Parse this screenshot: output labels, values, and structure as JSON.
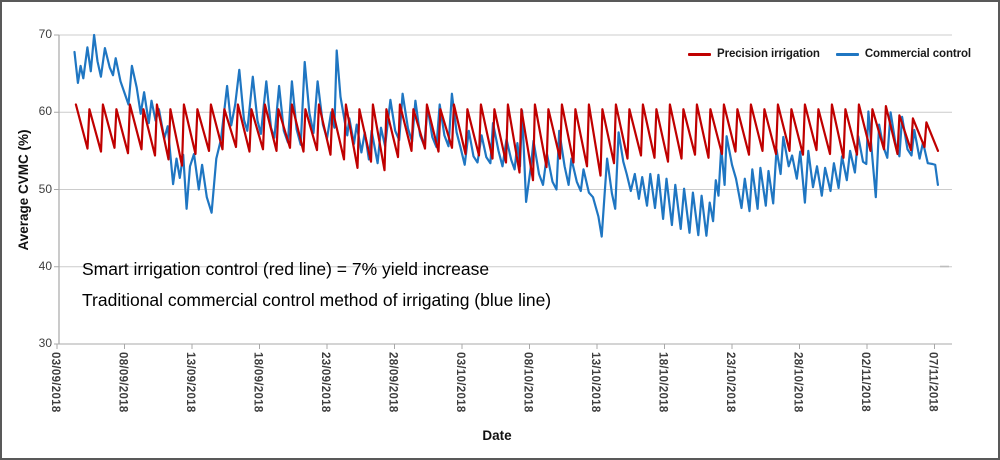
{
  "annotation": {
    "line1": "Smart irrigation control (red line) = 7% yield increase",
    "line2": "Traditional commercial control method of irrigating (blue line)"
  },
  "legend": {
    "items": [
      {
        "label": "Precision irrigation",
        "color": "#C00000"
      },
      {
        "label": "Commercial control",
        "color": "#1F76C2"
      }
    ]
  },
  "colors": {
    "gridline": "#cccccc",
    "axis": "#a8a8a8",
    "tick_text": "#3d3d3d",
    "stray_dash": "#bdbdbd"
  },
  "chart_data": {
    "type": "line",
    "title": "",
    "xlabel": "Date",
    "ylabel": "Average CVMC (%)",
    "ylim": [
      30,
      70
    ],
    "y_ticks": [
      70,
      60,
      50,
      40,
      30
    ],
    "grid": "horizontal",
    "legend_position": "top-right",
    "x_tick_labels": [
      "03/09/2018",
      "08/09/2018",
      "13/09/2018",
      "18/09/2018",
      "23/09/2018",
      "28/09/2018",
      "03/10/2018",
      "08/10/2018",
      "13/10/2018",
      "18/10/2018",
      "23/10/2018",
      "28/10/2018",
      "02/11/2018",
      "07/11/2018"
    ],
    "x_tick_interval_days": 5,
    "x_unit": "days since 03/09/2018",
    "series": [
      {
        "name": "Precision irrigation",
        "color": "#C00000",
        "shape": "daily irrigation sawtooth: rapid rise to peak, slow decay to trough",
        "start_day": 1.4,
        "cycle_days": 1,
        "decay_fraction": 0.86,
        "cycle_peak_trough": [
          [
            61,
            55.3
          ],
          [
            60.4,
            54.9
          ],
          [
            61,
            55.4
          ],
          [
            60.4,
            54.7
          ],
          [
            61,
            55.2
          ],
          [
            60.4,
            54.4
          ],
          [
            61,
            53.9
          ],
          [
            60.4,
            53.1
          ],
          [
            61,
            54.6
          ],
          [
            60.4,
            55.0
          ],
          [
            61,
            55.2
          ],
          [
            60.4,
            55.5
          ],
          [
            61,
            54.9
          ],
          [
            60.4,
            55.2
          ],
          [
            61,
            55.0
          ],
          [
            60.4,
            55.4
          ],
          [
            61,
            54.9
          ],
          [
            60.4,
            55.1
          ],
          [
            61,
            54.5
          ],
          [
            60.4,
            53.9
          ],
          [
            61,
            52.8
          ],
          [
            60.4,
            53.6
          ],
          [
            61,
            52.5
          ],
          [
            60.4,
            54.2
          ],
          [
            61,
            55.0
          ],
          [
            60.4,
            55.3
          ],
          [
            61,
            54.9
          ],
          [
            60.4,
            55.4
          ],
          [
            61,
            54.6
          ],
          [
            60.4,
            54.4
          ],
          [
            61,
            54.0
          ],
          [
            60.4,
            53.5
          ],
          [
            61,
            52.2
          ],
          [
            60.4,
            51.2
          ],
          [
            61,
            52.9
          ],
          [
            60.4,
            54.0
          ],
          [
            61,
            53.5
          ],
          [
            60.4,
            53.0
          ],
          [
            61,
            51.8
          ],
          [
            60.4,
            53.4
          ],
          [
            61,
            54.0
          ],
          [
            60.4,
            54.4
          ],
          [
            61,
            54.1
          ],
          [
            60.4,
            53.6
          ],
          [
            61,
            54.0
          ],
          [
            60.4,
            54.5
          ],
          [
            61,
            54.1
          ],
          [
            60.4,
            54.6
          ],
          [
            61,
            54.9
          ],
          [
            60.4,
            54.5
          ],
          [
            61,
            55.0
          ],
          [
            60.4,
            54.6
          ],
          [
            61,
            55.0
          ],
          [
            60.4,
            54.5
          ],
          [
            61,
            55.1
          ],
          [
            60.4,
            54.6
          ],
          [
            61,
            54.1
          ],
          [
            60.4,
            54.5
          ],
          [
            61,
            55.0
          ],
          [
            60.4,
            55.2
          ],
          [
            60.8,
            54.6
          ],
          [
            59.6,
            55.1
          ],
          [
            59.2,
            55.5
          ],
          [
            58.7,
            55.0
          ]
        ]
      },
      {
        "name": "Commercial control",
        "color": "#1F76C2",
        "points": [
          [
            1.3,
            67.8
          ],
          [
            1.55,
            63.8
          ],
          [
            1.75,
            66.0
          ],
          [
            1.95,
            64.4
          ],
          [
            2.25,
            68.4
          ],
          [
            2.5,
            65.3
          ],
          [
            2.75,
            70.0
          ],
          [
            3.0,
            66.6
          ],
          [
            3.25,
            64.6
          ],
          [
            3.55,
            68.3
          ],
          [
            3.9,
            65.8
          ],
          [
            4.15,
            64.8
          ],
          [
            4.35,
            67.0
          ],
          [
            4.7,
            64.0
          ],
          [
            5.0,
            62.5
          ],
          [
            5.3,
            61.0
          ],
          [
            5.55,
            66.0
          ],
          [
            5.9,
            63.2
          ],
          [
            6.2,
            59.8
          ],
          [
            6.45,
            62.6
          ],
          [
            6.8,
            58.6
          ],
          [
            7.0,
            61.5
          ],
          [
            7.3,
            58.9
          ],
          [
            7.55,
            60.4
          ],
          [
            7.95,
            56.6
          ],
          [
            8.2,
            58.2
          ],
          [
            8.6,
            50.7
          ],
          [
            8.85,
            54.0
          ],
          [
            9.1,
            51.5
          ],
          [
            9.35,
            54.5
          ],
          [
            9.6,
            47.5
          ],
          [
            9.85,
            53.0
          ],
          [
            10.15,
            54.6
          ],
          [
            10.5,
            50.0
          ],
          [
            10.75,
            53.2
          ],
          [
            11.1,
            49.0
          ],
          [
            11.45,
            47.0
          ],
          [
            11.8,
            54.0
          ],
          [
            12.15,
            56.5
          ],
          [
            12.6,
            63.4
          ],
          [
            12.9,
            58.3
          ],
          [
            13.2,
            61.0
          ],
          [
            13.5,
            65.5
          ],
          [
            13.85,
            59.0
          ],
          [
            14.1,
            57.6
          ],
          [
            14.5,
            64.6
          ],
          [
            14.85,
            58.9
          ],
          [
            15.1,
            57.2
          ],
          [
            15.5,
            64.0
          ],
          [
            15.85,
            58.0
          ],
          [
            16.1,
            56.7
          ],
          [
            16.45,
            63.4
          ],
          [
            16.8,
            57.6
          ],
          [
            17.1,
            56.1
          ],
          [
            17.4,
            64.0
          ],
          [
            17.75,
            57.8
          ],
          [
            18.05,
            55.8
          ],
          [
            18.35,
            66.5
          ],
          [
            18.7,
            59.9
          ],
          [
            19.0,
            57.3
          ],
          [
            19.3,
            64.0
          ],
          [
            19.7,
            58.4
          ],
          [
            20.0,
            56.6
          ],
          [
            20.3,
            60.0
          ],
          [
            20.55,
            58.0
          ],
          [
            20.72,
            68.0
          ],
          [
            21.0,
            62.0
          ],
          [
            21.3,
            58.9
          ],
          [
            21.5,
            57.0
          ],
          [
            21.65,
            59.2
          ],
          [
            22.0,
            55.9
          ],
          [
            22.2,
            58.4
          ],
          [
            22.55,
            54.8
          ],
          [
            22.8,
            57.4
          ],
          [
            23.1,
            53.9
          ],
          [
            23.3,
            57.6
          ],
          [
            23.75,
            53.4
          ],
          [
            24.0,
            58.0
          ],
          [
            24.3,
            55.6
          ],
          [
            24.7,
            61.6
          ],
          [
            25.05,
            57.6
          ],
          [
            25.35,
            56.4
          ],
          [
            25.6,
            62.4
          ],
          [
            26.0,
            57.9
          ],
          [
            26.3,
            56.2
          ],
          [
            26.55,
            61.5
          ],
          [
            26.9,
            57.0
          ],
          [
            27.2,
            55.7
          ],
          [
            27.45,
            60.6
          ],
          [
            27.8,
            56.8
          ],
          [
            28.1,
            55.5
          ],
          [
            28.35,
            61.0
          ],
          [
            28.7,
            57.0
          ],
          [
            29.0,
            55.6
          ],
          [
            29.25,
            62.4
          ],
          [
            29.6,
            57.4
          ],
          [
            29.9,
            55.4
          ],
          [
            30.2,
            53.2
          ],
          [
            30.5,
            57.6
          ],
          [
            30.85,
            54.3
          ],
          [
            31.15,
            53.5
          ],
          [
            31.45,
            57.0
          ],
          [
            31.8,
            54.2
          ],
          [
            32.1,
            53.4
          ],
          [
            32.3,
            58.6
          ],
          [
            32.7,
            55.0
          ],
          [
            33.0,
            53.0
          ],
          [
            33.3,
            56.5
          ],
          [
            33.65,
            53.8
          ],
          [
            33.9,
            52.6
          ],
          [
            34.1,
            56.0
          ],
          [
            34.3,
            53.0
          ],
          [
            34.45,
            60.2
          ],
          [
            34.75,
            48.4
          ],
          [
            35.1,
            53.0
          ],
          [
            35.3,
            56.3
          ],
          [
            35.7,
            52.0
          ],
          [
            36.0,
            50.6
          ],
          [
            36.3,
            54.6
          ],
          [
            36.7,
            51.0
          ],
          [
            37.0,
            50.0
          ],
          [
            37.2,
            57.6
          ],
          [
            37.6,
            53.0
          ],
          [
            37.9,
            50.6
          ],
          [
            38.1,
            54.0
          ],
          [
            38.5,
            51.0
          ],
          [
            38.8,
            49.8
          ],
          [
            39.0,
            52.6
          ],
          [
            39.4,
            49.6
          ],
          [
            39.7,
            49.0
          ],
          [
            40.1,
            46.5
          ],
          [
            40.35,
            43.9
          ],
          [
            40.55,
            49.0
          ],
          [
            40.75,
            54.0
          ],
          [
            41.1,
            49.5
          ],
          [
            41.35,
            47.5
          ],
          [
            41.6,
            57.4
          ],
          [
            41.95,
            53.6
          ],
          [
            42.2,
            52.0
          ],
          [
            42.5,
            49.8
          ],
          [
            42.8,
            52.0
          ],
          [
            43.1,
            48.8
          ],
          [
            43.35,
            51.6
          ],
          [
            43.7,
            47.9
          ],
          [
            43.95,
            52.0
          ],
          [
            44.3,
            47.6
          ],
          [
            44.55,
            51.9
          ],
          [
            44.9,
            46.2
          ],
          [
            45.15,
            51.4
          ],
          [
            45.55,
            45.4
          ],
          [
            45.8,
            50.6
          ],
          [
            46.2,
            44.9
          ],
          [
            46.45,
            50.1
          ],
          [
            46.85,
            44.4
          ],
          [
            47.1,
            49.6
          ],
          [
            47.5,
            44.1
          ],
          [
            47.75,
            49.2
          ],
          [
            48.1,
            44.0
          ],
          [
            48.35,
            48.3
          ],
          [
            48.6,
            45.9
          ],
          [
            48.8,
            51.2
          ],
          [
            49.0,
            49.2
          ],
          [
            49.2,
            55.4
          ],
          [
            49.45,
            50.6
          ],
          [
            49.6,
            56.9
          ],
          [
            50.0,
            53.2
          ],
          [
            50.3,
            51.4
          ],
          [
            50.7,
            47.6
          ],
          [
            50.95,
            51.4
          ],
          [
            51.3,
            47.2
          ],
          [
            51.5,
            52.6
          ],
          [
            51.9,
            47.5
          ],
          [
            52.1,
            52.8
          ],
          [
            52.5,
            47.9
          ],
          [
            52.7,
            52.4
          ],
          [
            53.05,
            48.2
          ],
          [
            53.3,
            55.2
          ],
          [
            53.6,
            52.0
          ],
          [
            53.8,
            56.8
          ],
          [
            54.2,
            53.0
          ],
          [
            54.45,
            54.4
          ],
          [
            54.8,
            51.4
          ],
          [
            55.05,
            54.9
          ],
          [
            55.4,
            48.3
          ],
          [
            55.65,
            55.0
          ],
          [
            56.0,
            50.3
          ],
          [
            56.3,
            53.0
          ],
          [
            56.65,
            49.2
          ],
          [
            56.9,
            52.8
          ],
          [
            57.3,
            49.8
          ],
          [
            57.55,
            53.4
          ],
          [
            57.9,
            50.2
          ],
          [
            58.15,
            54.3
          ],
          [
            58.5,
            51.2
          ],
          [
            58.75,
            55.0
          ],
          [
            59.1,
            52.2
          ],
          [
            59.35,
            56.9
          ],
          [
            59.7,
            53.6
          ],
          [
            59.95,
            53.3
          ],
          [
            60.1,
            60.1
          ],
          [
            60.45,
            53.0
          ],
          [
            60.65,
            49.0
          ],
          [
            60.9,
            58.4
          ],
          [
            61.2,
            55.6
          ],
          [
            61.5,
            54.1
          ],
          [
            61.75,
            60.0
          ],
          [
            62.1,
            56.0
          ],
          [
            62.4,
            54.3
          ],
          [
            62.6,
            59.4
          ],
          [
            63.0,
            55.2
          ],
          [
            63.3,
            54.4
          ],
          [
            63.5,
            57.7
          ],
          [
            63.9,
            54.0
          ],
          [
            64.15,
            56.1
          ],
          [
            64.5,
            53.4
          ],
          [
            64.85,
            53.3
          ],
          [
            65.05,
            53.2
          ],
          [
            65.25,
            50.6
          ]
        ]
      }
    ]
  }
}
